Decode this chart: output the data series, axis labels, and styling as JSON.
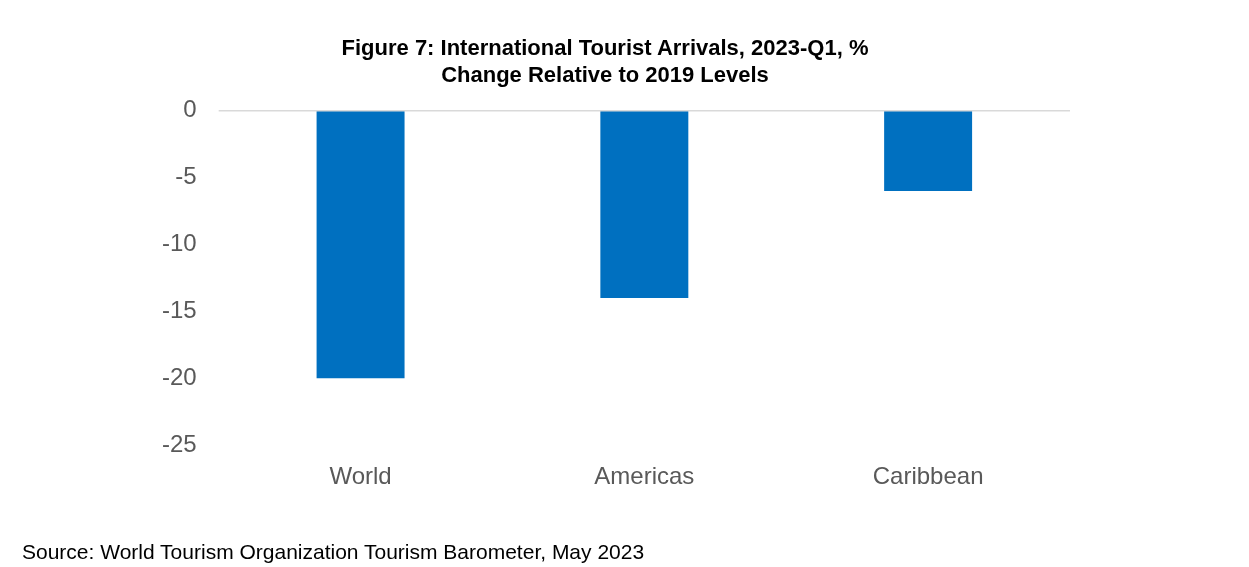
{
  "chart_data": {
    "type": "bar",
    "title": [
      "Figure 7: International Tourist Arrivals, 2023-Q1, %",
      "Change Relative to 2019 Levels"
    ],
    "categories": [
      "World",
      "Americas",
      "Caribbean"
    ],
    "values": [
      -20,
      -14,
      -6
    ],
    "color": "#0070c0",
    "ylim": [
      -25,
      0
    ],
    "yticks": [
      -25,
      -20,
      -15,
      -10,
      -5,
      0
    ],
    "grid": false,
    "legend": false,
    "annotations": [
      "Source:  World Tourism Organization Tourism Barometer, May 2023"
    ]
  }
}
